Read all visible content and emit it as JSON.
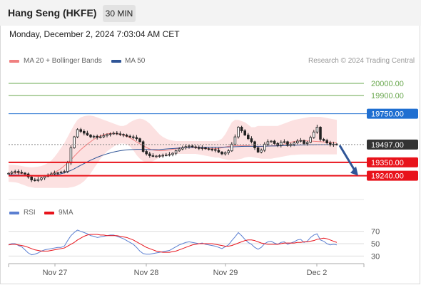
{
  "header": {
    "instrument": "Hang Seng (HKFE)",
    "timeframe": "30 MIN",
    "timestamp": "Monday, December 2, 2024 7:03:04 AM CET"
  },
  "watermark": "Research © 2024 Trading Central",
  "colors": {
    "bollinger": "#f08080",
    "ma50": "#2f5597",
    "candle": "#222222",
    "resistance_green": "#6aa84f",
    "pivot_blue": "#1f6fd1",
    "support_red": "#e8131b",
    "last_price": "#333333",
    "rsi": "#5b7fd1",
    "rsi_ma": "#e8131b"
  },
  "chart_data": [
    {
      "type": "line",
      "title": "Hang Seng (HKFE)",
      "legend": {
        "placement": "top-left",
        "entries": [
          "MA 20 + Bollinger Bands",
          "MA 50"
        ]
      },
      "x_ticks": [
        "Nov 27",
        "Nov 28",
        "Nov 29",
        "Dec 2"
      ],
      "levels": [
        {
          "value": 20000.0,
          "label": "20000.00",
          "kind": "resistance",
          "color": "#6aa84f"
        },
        {
          "value": 19900.0,
          "label": "19900.00",
          "kind": "resistance",
          "color": "#6aa84f"
        },
        {
          "value": 19750.0,
          "label": "19750.00",
          "kind": "pivot",
          "color": "#1f6fd1"
        },
        {
          "value": 19497.0,
          "label": "19497.00",
          "kind": "last",
          "color": "#333333"
        },
        {
          "value": 19350.0,
          "label": "19350.00",
          "kind": "support",
          "color": "#e8131b"
        },
        {
          "value": 19240.0,
          "label": "19240.00",
          "kind": "support",
          "color": "#e8131b"
        }
      ],
      "ylim": [
        19150,
        20100
      ],
      "price_close": [
        19260,
        19270,
        19275,
        19268,
        19262,
        19255,
        19230,
        19205,
        19200,
        19210,
        19222,
        19235,
        19245,
        19255,
        19262,
        19265,
        19270,
        19275,
        19345,
        19470,
        19560,
        19620,
        19605,
        19590,
        19575,
        19560,
        19565,
        19555,
        19560,
        19570,
        19580,
        19585,
        19590,
        19585,
        19580,
        19575,
        19565,
        19560,
        19555,
        19545,
        19520,
        19440,
        19420,
        19405,
        19400,
        19402,
        19405,
        19408,
        19410,
        19415,
        19425,
        19445,
        19460,
        19470,
        19480,
        19485,
        19478,
        19472,
        19465,
        19470,
        19462,
        19458,
        19455,
        19450,
        19435,
        19420,
        19430,
        19445,
        19500,
        19560,
        19640,
        19610,
        19575,
        19545,
        19520,
        19470,
        19435,
        19450,
        19500,
        19520,
        19525,
        19505,
        19490,
        19515,
        19520,
        19490,
        19500,
        19510,
        19525,
        19530,
        19505,
        19515,
        19555,
        19600,
        19640,
        19540,
        19530,
        19510,
        19495,
        19500,
        19497
      ],
      "ma20": [
        19262,
        19263,
        19264,
        19262,
        19258,
        19252,
        19246,
        19240,
        19236,
        19234,
        19236,
        19240,
        19246,
        19255,
        19268,
        19282,
        19300,
        19322,
        19345,
        19370,
        19400,
        19428,
        19455,
        19478,
        19500,
        19520,
        19540,
        19556,
        19568,
        19578,
        19585,
        19588,
        19588,
        19586,
        19582,
        19575,
        19565,
        19552,
        19536,
        19518,
        19502,
        19488,
        19472,
        19460,
        19452,
        19448,
        19446,
        19446,
        19448,
        19452,
        19458,
        19462,
        19466,
        19470,
        19472,
        19473,
        19472,
        19470,
        19468,
        19466,
        19464,
        19462,
        19462,
        19462,
        19465,
        19470,
        19476,
        19482,
        19486,
        19488,
        19488,
        19488,
        19488,
        19487,
        19485,
        19482,
        19480,
        19480,
        19482,
        19484,
        19486,
        19488,
        19490,
        19494,
        19500,
        19508,
        19516,
        19522,
        19526,
        19528,
        19528,
        19527,
        19526,
        19524,
        19522,
        19520,
        19518,
        19516,
        19514,
        19512,
        19510
      ],
      "ma50": [
        19250,
        19248,
        19247,
        19246,
        19245,
        19244,
        19243,
        19242,
        19241,
        19240,
        19240,
        19240,
        19241,
        19243,
        19246,
        19250,
        19256,
        19264,
        19273,
        19284,
        19297,
        19312,
        19326,
        19340,
        19354,
        19368,
        19380,
        19392,
        19402,
        19412,
        19420,
        19428,
        19435,
        19441,
        19446,
        19450,
        19453,
        19455,
        19456,
        19457,
        19457,
        19457,
        19456,
        19455,
        19455,
        19455,
        19456,
        19458,
        19460,
        19462,
        19464,
        19466,
        19468,
        19470,
        19471,
        19472,
        19473,
        19474,
        19474,
        19475,
        19475,
        19475,
        19475,
        19475,
        19475,
        19475,
        19476,
        19477,
        19478,
        19479,
        19480,
        19481,
        19482,
        19482,
        19482,
        19482,
        19482,
        19482,
        19483,
        19484,
        19485,
        19485,
        19486,
        19487,
        19488,
        19489,
        19490,
        19491,
        19492,
        19493,
        19494,
        19494,
        19495,
        19495,
        19496,
        19496,
        19496,
        19496,
        19497,
        19497,
        19497
      ],
      "bb_upper": [
        19330,
        19330,
        19328,
        19325,
        19320,
        19315,
        19312,
        19310,
        19312,
        19315,
        19320,
        19330,
        19345,
        19365,
        19395,
        19430,
        19470,
        19510,
        19560,
        19610,
        19660,
        19700,
        19720,
        19730,
        19735,
        19735,
        19730,
        19720,
        19710,
        19700,
        19690,
        19680,
        19670,
        19660,
        19650,
        19650,
        19660,
        19680,
        19695,
        19705,
        19710,
        19705,
        19690,
        19670,
        19640,
        19610,
        19580,
        19560,
        19545,
        19535,
        19530,
        19525,
        19525,
        19525,
        19525,
        19525,
        19525,
        19525,
        19525,
        19525,
        19525,
        19525,
        19525,
        19525,
        19530,
        19545,
        19580,
        19630,
        19680,
        19700,
        19700,
        19690,
        19680,
        19660,
        19640,
        19640,
        19650,
        19650,
        19650,
        19650,
        19650,
        19650,
        19650,
        19660,
        19670,
        19680,
        19690,
        19700,
        19705,
        19710,
        19715,
        19720,
        19725,
        19725,
        19725,
        19725,
        19720,
        19715,
        19710,
        19705,
        19700
      ],
      "bb_lower": [
        19190,
        19188,
        19186,
        19180,
        19170,
        19160,
        19150,
        19145,
        19140,
        19140,
        19140,
        19140,
        19140,
        19140,
        19140,
        19140,
        19140,
        19140,
        19140,
        19145,
        19150,
        19160,
        19175,
        19195,
        19225,
        19260,
        19300,
        19340,
        19380,
        19410,
        19440,
        19460,
        19480,
        19495,
        19505,
        19505,
        19500,
        19480,
        19450,
        19410,
        19380,
        19360,
        19350,
        19350,
        19360,
        19375,
        19390,
        19400,
        19405,
        19410,
        19415,
        19420,
        19420,
        19420,
        19420,
        19420,
        19420,
        19420,
        19415,
        19410,
        19405,
        19400,
        19395,
        19390,
        19390,
        19380,
        19375,
        19370,
        19370,
        19370,
        19375,
        19380,
        19390,
        19395,
        19395,
        19390,
        19385,
        19380,
        19380,
        19380,
        19380,
        19385,
        19390,
        19395,
        19400,
        19405,
        19410,
        19412,
        19414,
        19415,
        19416,
        19416,
        19416,
        19416,
        19416,
        19416,
        19416,
        19416,
        19416,
        19416,
        19416
      ],
      "projection": {
        "from": 19490,
        "to": 19240
      }
    },
    {
      "type": "line",
      "title": "RSI",
      "legend": {
        "placement": "top-left",
        "entries": [
          "RSI",
          "9MA"
        ]
      },
      "y_ticks": [
        "70",
        "50",
        "30"
      ],
      "ylim": [
        20,
        80
      ],
      "rsi": [
        48,
        50,
        50,
        47,
        45,
        40,
        35,
        32,
        33,
        35,
        38,
        40,
        41,
        42,
        43,
        44,
        44,
        46,
        55,
        63,
        68,
        72,
        70,
        68,
        66,
        63,
        62,
        60,
        61,
        62,
        63,
        64,
        64,
        62,
        60,
        58,
        55,
        52,
        49,
        44,
        38,
        34,
        33,
        33,
        34,
        35,
        36,
        37,
        38,
        39,
        42,
        45,
        48,
        50,
        52,
        53,
        52,
        51,
        50,
        51,
        49,
        48,
        47,
        46,
        44,
        42,
        45,
        48,
        55,
        61,
        68,
        63,
        57,
        52,
        49,
        44,
        41,
        44,
        50,
        53,
        54,
        51,
        49,
        52,
        53,
        49,
        51,
        53,
        56,
        57,
        52,
        54,
        60,
        64,
        66,
        56,
        54,
        50,
        48,
        49,
        48
      ],
      "rsi_ma": [
        48,
        49,
        49,
        48,
        47,
        46,
        44,
        42,
        40,
        39,
        38,
        38,
        38,
        39,
        40,
        41,
        42,
        43,
        46,
        49,
        52,
        56,
        59,
        62,
        64,
        65,
        65,
        65,
        64,
        64,
        63,
        63,
        63,
        63,
        62,
        61,
        60,
        58,
        56,
        53,
        50,
        47,
        44,
        42,
        40,
        38,
        37,
        36,
        36,
        36,
        37,
        38,
        40,
        42,
        44,
        46,
        48,
        49,
        50,
        50,
        50,
        50,
        50,
        49,
        48,
        47,
        46,
        46,
        47,
        49,
        51,
        53,
        55,
        56,
        56,
        55,
        53,
        51,
        50,
        49,
        49,
        49,
        49,
        50,
        51,
        51,
        51,
        51,
        52,
        52,
        53,
        53,
        54,
        55,
        57,
        58,
        59,
        58,
        56,
        54,
        52
      ]
    }
  ]
}
